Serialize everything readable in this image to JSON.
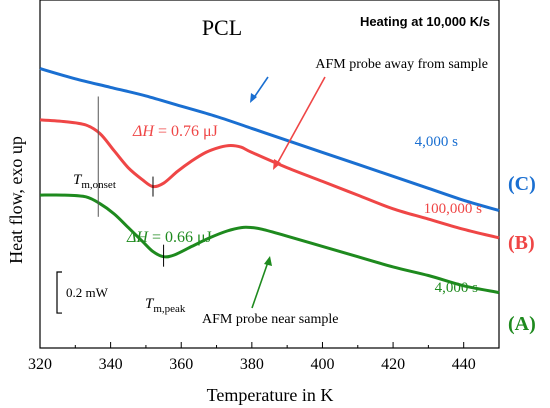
{
  "chart_data": {
    "type": "line",
    "title": "PCL",
    "subtitle": "Heating at 10,000 K/s",
    "xlabel": "Temperature in K",
    "ylabel": "Heat flow, exo up",
    "xlim": [
      320,
      450
    ],
    "x_ticks": [
      320,
      340,
      360,
      380,
      400,
      420,
      440
    ],
    "grid": false,
    "series": [
      {
        "name": "4,000 s",
        "id": "C",
        "id_label": "(C)",
        "color": "#1a6fd1",
        "points": [
          [
            320,
            1.02
          ],
          [
            330,
            0.96
          ],
          [
            340,
            0.91
          ],
          [
            350,
            0.86
          ],
          [
            360,
            0.8
          ],
          [
            370,
            0.74
          ],
          [
            380,
            0.67
          ],
          [
            390,
            0.6
          ],
          [
            400,
            0.53
          ],
          [
            410,
            0.46
          ],
          [
            420,
            0.39
          ],
          [
            430,
            0.32
          ],
          [
            440,
            0.25
          ],
          [
            450,
            0.19
          ]
        ]
      },
      {
        "name": "100,000 s",
        "id": "B",
        "id_label": "(B)",
        "color": "#ef4646",
        "points": [
          [
            320,
            0.72
          ],
          [
            327,
            0.71
          ],
          [
            333,
            0.69
          ],
          [
            337,
            0.64
          ],
          [
            341,
            0.54
          ],
          [
            345,
            0.44
          ],
          [
            349,
            0.37
          ],
          [
            352,
            0.33
          ],
          [
            355,
            0.35
          ],
          [
            359,
            0.42
          ],
          [
            363,
            0.48
          ],
          [
            367,
            0.53
          ],
          [
            371,
            0.56
          ],
          [
            374,
            0.57
          ],
          [
            377,
            0.56
          ],
          [
            380,
            0.53
          ],
          [
            390,
            0.44
          ],
          [
            400,
            0.36
          ],
          [
            410,
            0.28
          ],
          [
            420,
            0.2
          ],
          [
            430,
            0.14
          ],
          [
            440,
            0.08
          ],
          [
            450,
            0.03
          ]
        ]
      },
      {
        "name": "4,000 s",
        "id": "A",
        "id_label": "(A)",
        "color": "#1e8a1e",
        "points": [
          [
            320,
            0.28
          ],
          [
            327,
            0.28
          ],
          [
            333,
            0.27
          ],
          [
            337,
            0.23
          ],
          [
            341,
            0.17
          ],
          [
            345,
            0.09
          ],
          [
            349,
            0.01
          ],
          [
            352,
            -0.05
          ],
          [
            355,
            -0.08
          ],
          [
            358,
            -0.07
          ],
          [
            363,
            -0.02
          ],
          [
            368,
            0.03
          ],
          [
            373,
            0.07
          ],
          [
            377,
            0.09
          ],
          [
            380,
            0.09
          ],
          [
            383,
            0.08
          ],
          [
            390,
            0.04
          ],
          [
            400,
            -0.02
          ],
          [
            410,
            -0.08
          ],
          [
            420,
            -0.14
          ],
          [
            430,
            -0.19
          ],
          [
            440,
            -0.25
          ],
          [
            450,
            -0.29
          ]
        ]
      }
    ],
    "annotations": {
      "probe_away": "AFM probe away from sample",
      "probe_near": "AFM probe near sample",
      "dh_b": "= 0.76 μJ",
      "dh_a": "= 0.66 μJ",
      "dh_symbol": "ΔH",
      "onset_main": "T",
      "onset_sub": "m,onset",
      "peak_main": "T",
      "peak_sub": "m,peak",
      "scale_bar": "0.2 mW"
    },
    "markers": {
      "onset_T": 336.5,
      "peak_T_B": 352,
      "peak_T_A": 355
    },
    "scale_bar_value": 0.2
  }
}
